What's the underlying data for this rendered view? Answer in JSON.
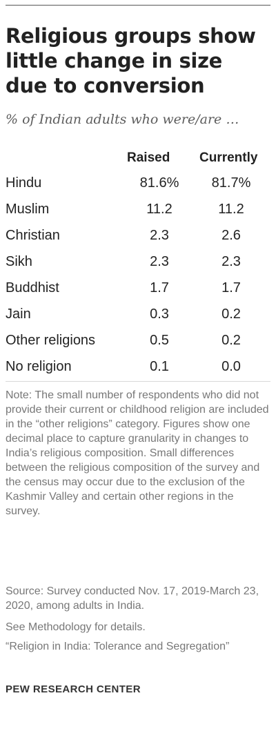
{
  "title": "Religious groups show little change in size due to conversion",
  "subtitle": "% of Indian adults who were/are …",
  "chart_data": {
    "type": "table",
    "columns": [
      "Raised",
      "Currently"
    ],
    "rows": [
      {
        "label": "Hindu",
        "raised": "81.6%",
        "currently": "81.7%"
      },
      {
        "label": "Muslim",
        "raised": "11.2",
        "currently": "11.2"
      },
      {
        "label": "Christian",
        "raised": "2.3",
        "currently": "2.6"
      },
      {
        "label": "Sikh",
        "raised": "2.3",
        "currently": "2.3"
      },
      {
        "label": "Buddhist",
        "raised": "1.7",
        "currently": "1.7"
      },
      {
        "label": "Jain",
        "raised": "0.3",
        "currently": "0.2"
      },
      {
        "label": "Other religions",
        "raised": "0.5",
        "currently": "0.2"
      },
      {
        "label": "No religion",
        "raised": "0.1",
        "currently": "0.0"
      }
    ]
  },
  "note": "Note: The small number of respondents who did not provide their current or childhood religion are included in the “other religions” category. Figures show one decimal place to capture granularity in changes to India’s religious composition. Small differences between the religious composition of the survey and the census may occur due to the exclusion of the Kashmir Valley and certain other regions in the survey.",
  "source": "Source: Survey conducted Nov. 17, 2019-March 23, 2020, among adults in India.",
  "methodology": "See Methodology for details.",
  "report": "“Religion in India: Tolerance and Segregation”",
  "organization": "PEW RESEARCH CENTER",
  "colors": {
    "title": "#222222",
    "subtitle": "#5c5c5c",
    "note": "#777777",
    "rule": "#d8d8d8"
  }
}
